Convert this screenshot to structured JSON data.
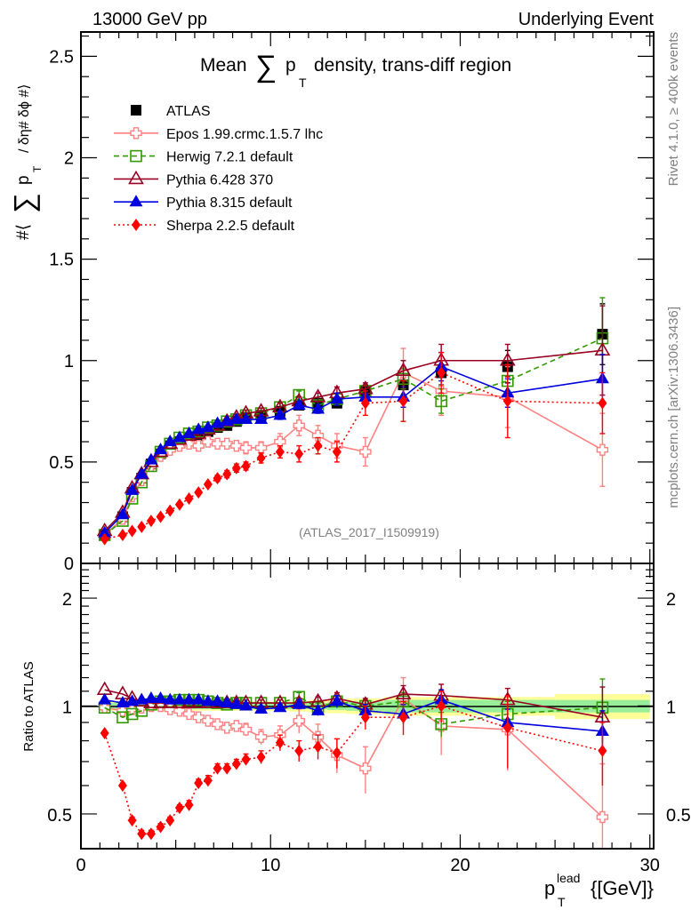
{
  "header": {
    "left": "13000 GeV pp",
    "right": "Underlying Event"
  },
  "side_labels": {
    "rivet": "Rivet 4.1.0, ≥ 400k events",
    "mcplots": "mcplots.cern.ch [arXiv:1306.3436]"
  },
  "chart_data": [
    {
      "type": "line",
      "title_pre": "Mean",
      "title_sum": "∑",
      "title_p": "p",
      "title_sub": "T",
      "title_post": "density, trans-diff region",
      "ylabel_parts": [
        "#⟨",
        "∑",
        "p",
        "T",
        "/ δη# δϕ #⟩"
      ],
      "xlabel": "",
      "analysis_tag": "(ATLAS_2017_I1509919)",
      "xlim": [
        0,
        30.2
      ],
      "ylim": [
        0,
        2.62
      ],
      "yticks": [
        0,
        0.5,
        1,
        1.5,
        2,
        2.5
      ],
      "ytick_labels": [
        "0",
        "0.5",
        "1",
        "1.5",
        "2",
        "2.5"
      ],
      "legend_position": "top-left",
      "x": [
        1.25,
        2.2,
        2.7,
        3.2,
        3.7,
        4.2,
        4.7,
        5.2,
        5.7,
        6.2,
        6.7,
        7.2,
        7.7,
        8.2,
        8.7,
        9.5,
        10.5,
        11.5,
        12.5,
        13.5,
        15,
        17,
        19,
        22.5,
        27.5
      ],
      "series": [
        {
          "name": "ATLAS",
          "key": "atlas",
          "color": "#000000",
          "marker": "square-filled",
          "line": "none",
          "values": [
            0.14,
            0.23,
            0.35,
            0.42,
            0.49,
            0.54,
            0.58,
            0.6,
            0.62,
            0.63,
            0.65,
            0.67,
            0.68,
            0.7,
            0.72,
            0.73,
            0.75,
            0.78,
            0.79,
            0.79,
            0.85,
            0.88,
            0.94,
            0.97,
            1.13
          ],
          "errors": [
            0.005,
            0.005,
            0.005,
            0.005,
            0.005,
            0.006,
            0.006,
            0.006,
            0.007,
            0.007,
            0.008,
            0.008,
            0.009,
            0.01,
            0.01,
            0.012,
            0.015,
            0.02,
            0.02,
            0.02,
            0.03,
            0.05,
            0.06,
            0.08,
            0.15
          ]
        },
        {
          "name": "Epos 1.99.crmc.1.5.7 lhc",
          "key": "epos",
          "color": "#ff8080",
          "marker": "cross-open",
          "line": "solid",
          "values": [
            0.14,
            0.22,
            0.33,
            0.41,
            0.48,
            0.53,
            0.56,
            0.58,
            0.59,
            0.58,
            0.6,
            0.59,
            0.59,
            0.58,
            0.57,
            0.57,
            0.6,
            0.68,
            0.63,
            0.58,
            0.55,
            0.94,
            0.85,
            0.82,
            0.56
          ],
          "errors": [
            0.005,
            0.006,
            0.006,
            0.007,
            0.008,
            0.01,
            0.01,
            0.012,
            0.015,
            0.015,
            0.02,
            0.02,
            0.025,
            0.025,
            0.03,
            0.03,
            0.04,
            0.05,
            0.05,
            0.06,
            0.07,
            0.12,
            0.12,
            0.15,
            0.18
          ]
        },
        {
          "name": "Herwig 7.2.1 default",
          "key": "herwig",
          "color": "#339900",
          "marker": "square-open",
          "line": "dashed",
          "values": [
            0.14,
            0.21,
            0.32,
            0.4,
            0.48,
            0.55,
            0.59,
            0.62,
            0.64,
            0.65,
            0.67,
            0.68,
            0.7,
            0.71,
            0.73,
            0.74,
            0.77,
            0.83,
            0.78,
            0.81,
            0.85,
            0.91,
            0.8,
            0.9,
            1.11
          ],
          "errors": [
            0.004,
            0.005,
            0.005,
            0.006,
            0.006,
            0.007,
            0.008,
            0.008,
            0.009,
            0.01,
            0.01,
            0.012,
            0.012,
            0.013,
            0.015,
            0.015,
            0.02,
            0.02,
            0.02,
            0.03,
            0.03,
            0.05,
            0.06,
            0.08,
            0.2
          ]
        },
        {
          "name": "Pythia 6.428 370",
          "key": "py6",
          "color": "#990022",
          "marker": "triangle-open",
          "line": "solid",
          "values": [
            0.16,
            0.25,
            0.37,
            0.44,
            0.5,
            0.55,
            0.59,
            0.61,
            0.63,
            0.64,
            0.66,
            0.68,
            0.7,
            0.72,
            0.74,
            0.75,
            0.77,
            0.8,
            0.82,
            0.84,
            0.86,
            0.95,
            1.0,
            1.0,
            1.05
          ],
          "errors": [
            0.004,
            0.005,
            0.005,
            0.006,
            0.006,
            0.007,
            0.008,
            0.008,
            0.009,
            0.01,
            0.01,
            0.012,
            0.012,
            0.013,
            0.015,
            0.015,
            0.02,
            0.02,
            0.02,
            0.03,
            0.03,
            0.05,
            0.08,
            0.08,
            0.22
          ]
        },
        {
          "name": "Pythia 8.315 default",
          "key": "py8",
          "color": "#0000dd",
          "marker": "triangle-filled",
          "line": "solid",
          "values": [
            0.15,
            0.24,
            0.36,
            0.44,
            0.51,
            0.56,
            0.6,
            0.62,
            0.64,
            0.66,
            0.67,
            0.69,
            0.7,
            0.71,
            0.71,
            0.71,
            0.73,
            0.78,
            0.76,
            0.81,
            0.82,
            0.82,
            0.97,
            0.84,
            0.91
          ],
          "errors": [
            0.004,
            0.005,
            0.005,
            0.006,
            0.006,
            0.007,
            0.008,
            0.008,
            0.009,
            0.01,
            0.01,
            0.012,
            0.012,
            0.013,
            0.015,
            0.015,
            0.02,
            0.02,
            0.02,
            0.03,
            0.03,
            0.05,
            0.07,
            0.07,
            0.12
          ]
        },
        {
          "name": "Sherpa 2.2.5 default",
          "key": "sherpa",
          "color": "#ff0000",
          "marker": "diamond-filled",
          "line": "dotted",
          "values": [
            0.12,
            0.14,
            0.16,
            0.18,
            0.21,
            0.23,
            0.26,
            0.29,
            0.32,
            0.35,
            0.39,
            0.42,
            0.44,
            0.47,
            0.48,
            0.52,
            0.55,
            0.54,
            0.58,
            0.55,
            0.79,
            0.8,
            0.94,
            0.8,
            0.79
          ],
          "errors": [
            0.004,
            0.005,
            0.005,
            0.006,
            0.006,
            0.007,
            0.008,
            0.008,
            0.009,
            0.01,
            0.012,
            0.015,
            0.018,
            0.02,
            0.02,
            0.025,
            0.03,
            0.04,
            0.04,
            0.05,
            0.06,
            0.1,
            0.1,
            0.18,
            0.15
          ]
        }
      ]
    },
    {
      "type": "line",
      "ylabel": "Ratio to ATLAS",
      "xlabel_p": "p",
      "xlabel_sup": "lead",
      "xlabel_sub": "T",
      "xlabel_unit": "{[GeV]}",
      "yscale": "log",
      "xlim": [
        0,
        30.2
      ],
      "ylim": [
        0.4,
        2.5
      ],
      "xticks": [
        0,
        10,
        20,
        30
      ],
      "xtick_labels": [
        "0",
        "10",
        "20",
        "30"
      ],
      "yticks": [
        0.5,
        1,
        2
      ],
      "ytick_labels": [
        "0.5",
        "1",
        "2"
      ],
      "reference": 1,
      "band_inner_color": "#99ee99",
      "band_outer_color": "#ffff99",
      "band_x_edges": [
        1,
        1.5,
        2.5,
        3,
        3.5,
        4,
        4.5,
        5,
        5.5,
        6,
        6.5,
        7,
        7.5,
        8,
        8.5,
        9,
        10,
        11,
        12,
        13,
        14,
        16,
        18,
        20,
        25,
        30
      ],
      "band_inner": [
        0.02,
        0.02,
        0.02,
        0.02,
        0.02,
        0.02,
        0.02,
        0.02,
        0.02,
        0.02,
        0.02,
        0.02,
        0.02,
        0.02,
        0.02,
        0.02,
        0.02,
        0.02,
        0.02,
        0.025,
        0.03,
        0.04,
        0.04,
        0.04,
        0.04
      ],
      "band_outer": [
        0.03,
        0.03,
        0.03,
        0.03,
        0.03,
        0.03,
        0.03,
        0.03,
        0.03,
        0.03,
        0.03,
        0.03,
        0.03,
        0.03,
        0.03,
        0.03,
        0.03,
        0.035,
        0.04,
        0.045,
        0.05,
        0.06,
        0.06,
        0.06,
        0.08
      ],
      "x": [
        1.25,
        2.2,
        2.7,
        3.2,
        3.7,
        4.2,
        4.7,
        5.2,
        5.7,
        6.2,
        6.7,
        7.2,
        7.7,
        8.2,
        8.7,
        9.5,
        10.5,
        11.5,
        12.5,
        13.5,
        15,
        17,
        19,
        22.5,
        27.5
      ],
      "series": [
        {
          "name": "Epos 1.99.crmc.1.5.7 lhc",
          "key": "epos",
          "values": [
            0.99,
            0.97,
            0.98,
            0.99,
            1.0,
            1.0,
            0.98,
            0.97,
            0.95,
            0.93,
            0.91,
            0.89,
            0.87,
            0.88,
            0.86,
            0.82,
            0.83,
            0.91,
            0.82,
            0.73,
            0.67,
            1.05,
            0.88,
            0.86,
            0.49
          ],
          "errors": [
            0.01,
            0.01,
            0.01,
            0.01,
            0.01,
            0.01,
            0.015,
            0.015,
            0.02,
            0.02,
            0.025,
            0.025,
            0.03,
            0.03,
            0.035,
            0.04,
            0.05,
            0.07,
            0.07,
            0.08,
            0.1,
            0.15,
            0.15,
            0.2,
            0.2
          ]
        },
        {
          "name": "Herwig 7.2.1 default",
          "key": "herwig",
          "values": [
            0.99,
            0.93,
            0.95,
            0.97,
            1.01,
            1.03,
            1.03,
            1.04,
            1.04,
            1.04,
            1.03,
            1.02,
            1.01,
            1.02,
            1.02,
            1.02,
            1.02,
            1.06,
            0.99,
            1.03,
            1.0,
            1.03,
            0.89,
            0.95,
            0.99
          ],
          "errors": [
            0.01,
            0.01,
            0.01,
            0.01,
            0.01,
            0.01,
            0.01,
            0.01,
            0.015,
            0.015,
            0.015,
            0.015,
            0.02,
            0.02,
            0.02,
            0.02,
            0.02,
            0.03,
            0.03,
            0.04,
            0.04,
            0.06,
            0.07,
            0.08,
            0.2
          ]
        },
        {
          "name": "Pythia 6.428 370",
          "key": "py6",
          "values": [
            1.11,
            1.08,
            1.05,
            1.03,
            1.02,
            1.02,
            1.02,
            1.02,
            1.02,
            1.02,
            1.02,
            1.02,
            1.02,
            1.02,
            1.02,
            1.02,
            1.02,
            1.02,
            1.03,
            1.05,
            1.01,
            1.08,
            1.07,
            1.04,
            0.93
          ],
          "errors": [
            0.01,
            0.01,
            0.01,
            0.01,
            0.01,
            0.01,
            0.01,
            0.01,
            0.015,
            0.015,
            0.015,
            0.015,
            0.02,
            0.02,
            0.02,
            0.02,
            0.02,
            0.03,
            0.03,
            0.04,
            0.04,
            0.06,
            0.08,
            0.08,
            0.2
          ]
        },
        {
          "name": "Pythia 8.315 default",
          "key": "py8",
          "values": [
            1.04,
            1.02,
            1.03,
            1.04,
            1.05,
            1.05,
            1.04,
            1.04,
            1.04,
            1.04,
            1.03,
            1.03,
            1.02,
            1.01,
            1.0,
            0.98,
            0.99,
            1.01,
            0.97,
            1.03,
            0.97,
            0.95,
            1.04,
            0.9,
            0.85
          ],
          "errors": [
            0.01,
            0.01,
            0.01,
            0.01,
            0.01,
            0.01,
            0.01,
            0.01,
            0.015,
            0.015,
            0.015,
            0.015,
            0.02,
            0.02,
            0.02,
            0.02,
            0.02,
            0.03,
            0.03,
            0.04,
            0.04,
            0.06,
            0.07,
            0.08,
            0.12
          ]
        },
        {
          "name": "Sherpa 2.2.5 default",
          "key": "sherpa",
          "values": [
            0.84,
            0.6,
            0.48,
            0.44,
            0.44,
            0.46,
            0.48,
            0.52,
            0.53,
            0.61,
            0.62,
            0.67,
            0.67,
            0.69,
            0.71,
            0.72,
            0.79,
            0.75,
            0.77,
            0.74,
            0.93,
            0.93,
            1.0,
            0.87,
            0.75
          ],
          "errors": [
            0.01,
            0.01,
            0.01,
            0.01,
            0.01,
            0.01,
            0.01,
            0.01,
            0.015,
            0.015,
            0.02,
            0.02,
            0.02,
            0.02,
            0.025,
            0.03,
            0.04,
            0.05,
            0.06,
            0.07,
            0.07,
            0.1,
            0.1,
            0.2,
            0.15
          ]
        }
      ]
    }
  ]
}
